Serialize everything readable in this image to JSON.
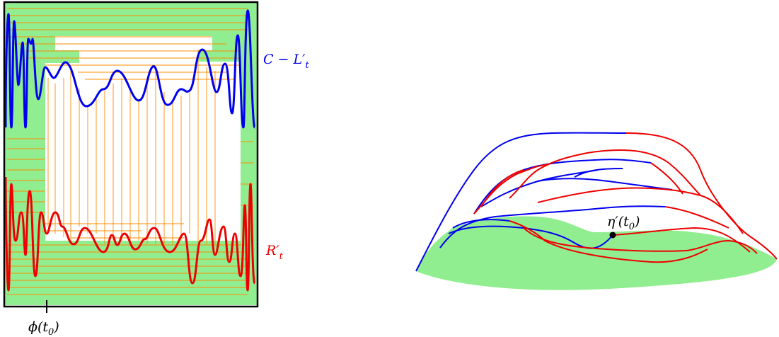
{
  "left_panel": {
    "label_upper": "C − L′",
    "label_upper_sub": "t",
    "label_lower": "R′",
    "label_lower_sub": "t",
    "axis_label": "ϕ(t",
    "axis_label_sub": "0",
    "axis_label_end": ")"
  },
  "right_panel": {
    "point_label": "η′(t",
    "point_label_sub": "0",
    "point_label_end": ")"
  },
  "colors": {
    "blue": "#0000ee",
    "red": "#ee0000",
    "green_fill": "#90ee90",
    "orange": "#ff8c00",
    "frame": "#000000"
  }
}
